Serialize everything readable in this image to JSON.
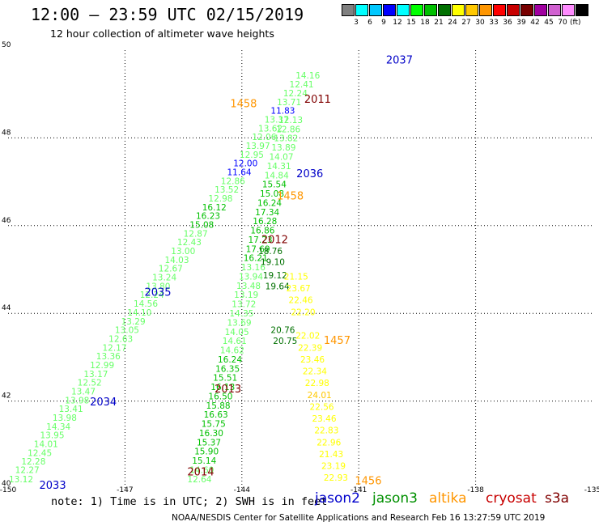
{
  "header": {
    "title": "12:00 – 23:59 UTC 02/15/2019",
    "subtitle": "12 hour collection of altimeter wave heights"
  },
  "colorbar": {
    "colors": [
      "#808080",
      "#00ffff",
      "#00c8ff",
      "#0000ff",
      "#00ffff",
      "#00ff00",
      "#00c000",
      "#007000",
      "#ffff00",
      "#ffc800",
      "#ff9600",
      "#ff0000",
      "#c80000",
      "#780000",
      "#a000a0",
      "#d060d0",
      "#ff8cff",
      "#000000"
    ],
    "ticks": [
      "3",
      "6",
      "9",
      "12",
      "15",
      "18",
      "21",
      "24",
      "27",
      "30",
      "33",
      "36",
      "39",
      "42",
      "45",
      "70"
    ],
    "unit": "(ft)"
  },
  "chart_data": {
    "type": "scatter",
    "title": "12:00 – 23:59 UTC 02/15/2019",
    "subtitle": "12 hour collection of altimeter wave heights",
    "x_ticks": [
      "-150",
      "-147",
      "-144",
      "-141",
      "-138",
      "-135"
    ],
    "y_ticks": [
      "50",
      "48",
      "46",
      "44",
      "42",
      "40"
    ],
    "xlim": [
      -150,
      -135
    ],
    "ylim": [
      40,
      50
    ],
    "grid": true,
    "color_scale_ft": [
      {
        "max": 12,
        "color": "#0000ff"
      },
      {
        "max": 15,
        "color": "#66ff66"
      },
      {
        "max": 18,
        "color": "#00c000"
      },
      {
        "max": 21,
        "color": "#007000"
      },
      {
        "max": 24,
        "color": "#ffff00"
      },
      {
        "max": 27,
        "color": "#ffc800"
      },
      {
        "max": 30,
        "color": "#ff9600"
      }
    ],
    "tracks": [
      {
        "satellite": "jason2",
        "points": [
          {
            "lon": -149.98,
            "lat": 40.15,
            "v": "13.12"
          },
          {
            "lon": -149.82,
            "lat": 40.36,
            "v": "12.27"
          },
          {
            "lon": -149.66,
            "lat": 40.55,
            "v": "12.28"
          },
          {
            "lon": -149.5,
            "lat": 40.75,
            "v": "12.45"
          },
          {
            "lon": -149.34,
            "lat": 40.95,
            "v": "14.01"
          },
          {
            "lon": -149.18,
            "lat": 41.15,
            "v": "13.95"
          },
          {
            "lon": -149.02,
            "lat": 41.35,
            "v": "14.34"
          },
          {
            "lon": -148.86,
            "lat": 41.55,
            "v": "13.98"
          },
          {
            "lon": -148.7,
            "lat": 41.75,
            "v": "13.41"
          },
          {
            "lon": -148.54,
            "lat": 41.95,
            "v": "13.98"
          },
          {
            "lon": -148.38,
            "lat": 42.15,
            "v": "13.47"
          },
          {
            "lon": -148.22,
            "lat": 42.35,
            "v": "12.52"
          },
          {
            "lon": -148.06,
            "lat": 42.55,
            "v": "13.17"
          },
          {
            "lon": -147.9,
            "lat": 42.75,
            "v": "12.99"
          },
          {
            "lon": -147.74,
            "lat": 42.95,
            "v": "13.36"
          },
          {
            "lon": -147.58,
            "lat": 43.15,
            "v": "12.17"
          },
          {
            "lon": -147.42,
            "lat": 43.35,
            "v": "12.63"
          },
          {
            "lon": -147.26,
            "lat": 43.55,
            "v": "13.05"
          },
          {
            "lon": -147.1,
            "lat": 43.75,
            "v": "13.29"
          },
          {
            "lon": -146.94,
            "lat": 43.95,
            "v": "14.10"
          },
          {
            "lon": -146.78,
            "lat": 44.15,
            "v": "14.56"
          },
          {
            "lon": -146.62,
            "lat": 44.35,
            "v": "12.24"
          },
          {
            "lon": -146.46,
            "lat": 44.55,
            "v": "13.80"
          },
          {
            "lon": -146.3,
            "lat": 44.75,
            "v": "13.24"
          },
          {
            "lon": -146.14,
            "lat": 44.95,
            "v": "12.67"
          },
          {
            "lon": -145.98,
            "lat": 45.15,
            "v": "14.03"
          },
          {
            "lon": -145.82,
            "lat": 45.35,
            "v": "13.00"
          },
          {
            "lon": -145.66,
            "lat": 45.55,
            "v": "12.43"
          },
          {
            "lon": -145.5,
            "lat": 45.75,
            "v": "12.87"
          },
          {
            "lon": -145.34,
            "lat": 45.95,
            "v": "15.08"
          },
          {
            "lon": -145.18,
            "lat": 46.15,
            "v": "16.23"
          },
          {
            "lon": -145.02,
            "lat": 46.35,
            "v": "16.12"
          },
          {
            "lon": -144.86,
            "lat": 46.55,
            "v": "12.98"
          },
          {
            "lon": -144.7,
            "lat": 46.75,
            "v": "13.52"
          },
          {
            "lon": -144.54,
            "lat": 46.95,
            "v": "12.86"
          },
          {
            "lon": -144.38,
            "lat": 47.15,
            "v": "11.64"
          },
          {
            "lon": -144.22,
            "lat": 47.35,
            "v": "12.00"
          },
          {
            "lon": -144.06,
            "lat": 47.55,
            "v": "12.95"
          },
          {
            "lon": -143.9,
            "lat": 47.75,
            "v": "13.97"
          },
          {
            "lon": -143.74,
            "lat": 47.95,
            "v": "12.06"
          },
          {
            "lon": -143.58,
            "lat": 48.15,
            "v": "13.62"
          },
          {
            "lon": -143.42,
            "lat": 48.35,
            "v": "13.37"
          },
          {
            "lon": -143.26,
            "lat": 48.55,
            "v": "11.83"
          },
          {
            "lon": -143.1,
            "lat": 48.75,
            "v": "13.71"
          },
          {
            "lon": -142.94,
            "lat": 48.95,
            "v": "12.24"
          },
          {
            "lon": -142.78,
            "lat": 49.15,
            "v": "12.41"
          },
          {
            "lon": -142.62,
            "lat": 49.35,
            "v": "14.16"
          }
        ]
      },
      {
        "satellite": "jason3",
        "points": [
          {
            "lon": -145.4,
            "lat": 40.15,
            "v": "12.64"
          },
          {
            "lon": -145.34,
            "lat": 40.36,
            "v": "14.60"
          },
          {
            "lon": -145.28,
            "lat": 40.57,
            "v": "15.14"
          },
          {
            "lon": -145.22,
            "lat": 40.78,
            "v": "15.90"
          },
          {
            "lon": -145.16,
            "lat": 40.99,
            "v": "15.37"
          },
          {
            "lon": -145.1,
            "lat": 41.2,
            "v": "16.30"
          },
          {
            "lon": -145.04,
            "lat": 41.41,
            "v": "15.75"
          },
          {
            "lon": -144.98,
            "lat": 41.62,
            "v": "16.63"
          },
          {
            "lon": -144.92,
            "lat": 41.83,
            "v": "15.88"
          },
          {
            "lon": -144.86,
            "lat": 42.04,
            "v": "16.50"
          },
          {
            "lon": -144.8,
            "lat": 42.25,
            "v": "16.13"
          },
          {
            "lon": -144.74,
            "lat": 42.46,
            "v": "15.51"
          },
          {
            "lon": -144.68,
            "lat": 42.67,
            "v": "16.35"
          },
          {
            "lon": -144.62,
            "lat": 42.88,
            "v": "16.24"
          },
          {
            "lon": -144.56,
            "lat": 43.09,
            "v": "14.62"
          },
          {
            "lon": -144.5,
            "lat": 43.3,
            "v": "14.61"
          },
          {
            "lon": -144.44,
            "lat": 43.51,
            "v": "14.05"
          },
          {
            "lon": -144.38,
            "lat": 43.72,
            "v": "13.69"
          },
          {
            "lon": -144.32,
            "lat": 43.93,
            "v": "14.35"
          },
          {
            "lon": -144.26,
            "lat": 44.14,
            "v": "13.72"
          },
          {
            "lon": -144.2,
            "lat": 44.35,
            "v": "13.19"
          },
          {
            "lon": -144.14,
            "lat": 44.56,
            "v": "13.48"
          },
          {
            "lon": -144.08,
            "lat": 44.77,
            "v": "13.94"
          },
          {
            "lon": -144.02,
            "lat": 44.98,
            "v": "13.16"
          },
          {
            "lon": -143.96,
            "lat": 45.19,
            "v": "16.21"
          },
          {
            "lon": -143.9,
            "lat": 45.4,
            "v": "17.69"
          },
          {
            "lon": -143.84,
            "lat": 45.61,
            "v": "17.23"
          },
          {
            "lon": -143.78,
            "lat": 45.82,
            "v": "16.86"
          },
          {
            "lon": -143.72,
            "lat": 46.03,
            "v": "16.28"
          },
          {
            "lon": -143.66,
            "lat": 46.24,
            "v": "17.34"
          },
          {
            "lon": -143.6,
            "lat": 46.45,
            "v": "16.24"
          },
          {
            "lon": -143.54,
            "lat": 46.66,
            "v": "15.08"
          },
          {
            "lon": -143.48,
            "lat": 46.87,
            "v": "15.54"
          },
          {
            "lon": -143.42,
            "lat": 47.08,
            "v": "14.84"
          },
          {
            "lon": -143.36,
            "lat": 47.29,
            "v": "14.31"
          },
          {
            "lon": -143.3,
            "lat": 47.5,
            "v": "14.07"
          },
          {
            "lon": -143.24,
            "lat": 47.71,
            "v": "13.89"
          },
          {
            "lon": -143.18,
            "lat": 47.92,
            "v": "13.82"
          },
          {
            "lon": -143.12,
            "lat": 48.13,
            "v": "12.86"
          },
          {
            "lon": -143.06,
            "lat": 48.34,
            "v": "12.13"
          }
        ]
      },
      {
        "satellite": "jason3_b",
        "points": [
          {
            "lon": -143.2,
            "lat": 43.3,
            "v": "20.75"
          },
          {
            "lon": -143.26,
            "lat": 43.55,
            "v": "20.76"
          },
          {
            "lon": -143.4,
            "lat": 44.55,
            "v": "19.64"
          },
          {
            "lon": -143.46,
            "lat": 44.8,
            "v": "19.12"
          },
          {
            "lon": -143.52,
            "lat": 45.1,
            "v": "19.10"
          },
          {
            "lon": -143.58,
            "lat": 45.35,
            "v": "18.76"
          }
        ]
      },
      {
        "satellite": "altika",
        "points": [
          {
            "lon": -141.9,
            "lat": 40.18,
            "v": "22.93"
          },
          {
            "lon": -141.96,
            "lat": 40.45,
            "v": "23.19"
          },
          {
            "lon": -142.02,
            "lat": 40.72,
            "v": "21.43"
          },
          {
            "lon": -142.08,
            "lat": 40.99,
            "v": "22.96"
          },
          {
            "lon": -142.14,
            "lat": 41.26,
            "v": "22.83"
          },
          {
            "lon": -142.2,
            "lat": 41.53,
            "v": "23.46"
          },
          {
            "lon": -142.26,
            "lat": 41.8,
            "v": "22.56"
          },
          {
            "lon": -142.32,
            "lat": 42.07,
            "v": "24.01"
          },
          {
            "lon": -142.38,
            "lat": 42.34,
            "v": "22.98"
          },
          {
            "lon": -142.44,
            "lat": 42.61,
            "v": "22.34"
          },
          {
            "lon": -142.5,
            "lat": 42.88,
            "v": "23.46"
          },
          {
            "lon": -142.56,
            "lat": 43.15,
            "v": "22.39"
          },
          {
            "lon": -142.62,
            "lat": 43.42,
            "v": "22.02"
          },
          {
            "lon": -142.74,
            "lat": 43.96,
            "v": "22.20"
          },
          {
            "lon": -142.8,
            "lat": 44.23,
            "v": "22.46"
          },
          {
            "lon": -142.86,
            "lat": 44.5,
            "v": "23.67"
          },
          {
            "lon": -142.92,
            "lat": 44.77,
            "v": "21.15"
          }
        ]
      }
    ],
    "pass_labels": [
      {
        "text": "2037",
        "lon": -140.3,
        "lat": 49.7,
        "color": "#0000c8"
      },
      {
        "text": "2011",
        "lon": -142.4,
        "lat": 48.8,
        "color": "#800000"
      },
      {
        "text": "1458",
        "lon": -144.3,
        "lat": 48.7,
        "color": "#ff9600"
      },
      {
        "text": "2036",
        "lon": -142.6,
        "lat": 47.1,
        "color": "#0000c8"
      },
      {
        "text": "1458",
        "lon": -143.1,
        "lat": 46.6,
        "color": "#ff9600"
      },
      {
        "text": "2012",
        "lon": -143.5,
        "lat": 45.6,
        "color": "#800000"
      },
      {
        "text": "2035",
        "lon": -146.5,
        "lat": 44.4,
        "color": "#0000c8"
      },
      {
        "text": "1457",
        "lon": -141.9,
        "lat": 43.3,
        "color": "#ff9600"
      },
      {
        "text": "2013",
        "lon": -144.7,
        "lat": 42.2,
        "color": "#800000"
      },
      {
        "text": "2034",
        "lon": -147.9,
        "lat": 41.9,
        "color": "#0000c8"
      },
      {
        "text": "2014",
        "lon": -145.4,
        "lat": 40.3,
        "color": "#800000"
      },
      {
        "text": "2033",
        "lon": -149.2,
        "lat": 40.0,
        "color": "#0000c8"
      },
      {
        "text": "1456",
        "lon": -141.1,
        "lat": 40.1,
        "color": "#ff9600"
      }
    ]
  },
  "legend": {
    "note": "note: 1) Time is in UTC; 2) SWH is in feet",
    "satellites": [
      {
        "name": "jason2",
        "color": "#0000cc"
      },
      {
        "name": "jason3",
        "color": "#009000"
      },
      {
        "name": "altika",
        "color": "#ff9600"
      },
      {
        "name": "cryosat",
        "color": "#c80000"
      },
      {
        "name": "s3a",
        "color": "#800000"
      }
    ]
  },
  "footer": {
    "text": "NOAA/NESDIS Center for Satellite Applications and Research   Feb 16 13:27:59 UTC 2019"
  }
}
